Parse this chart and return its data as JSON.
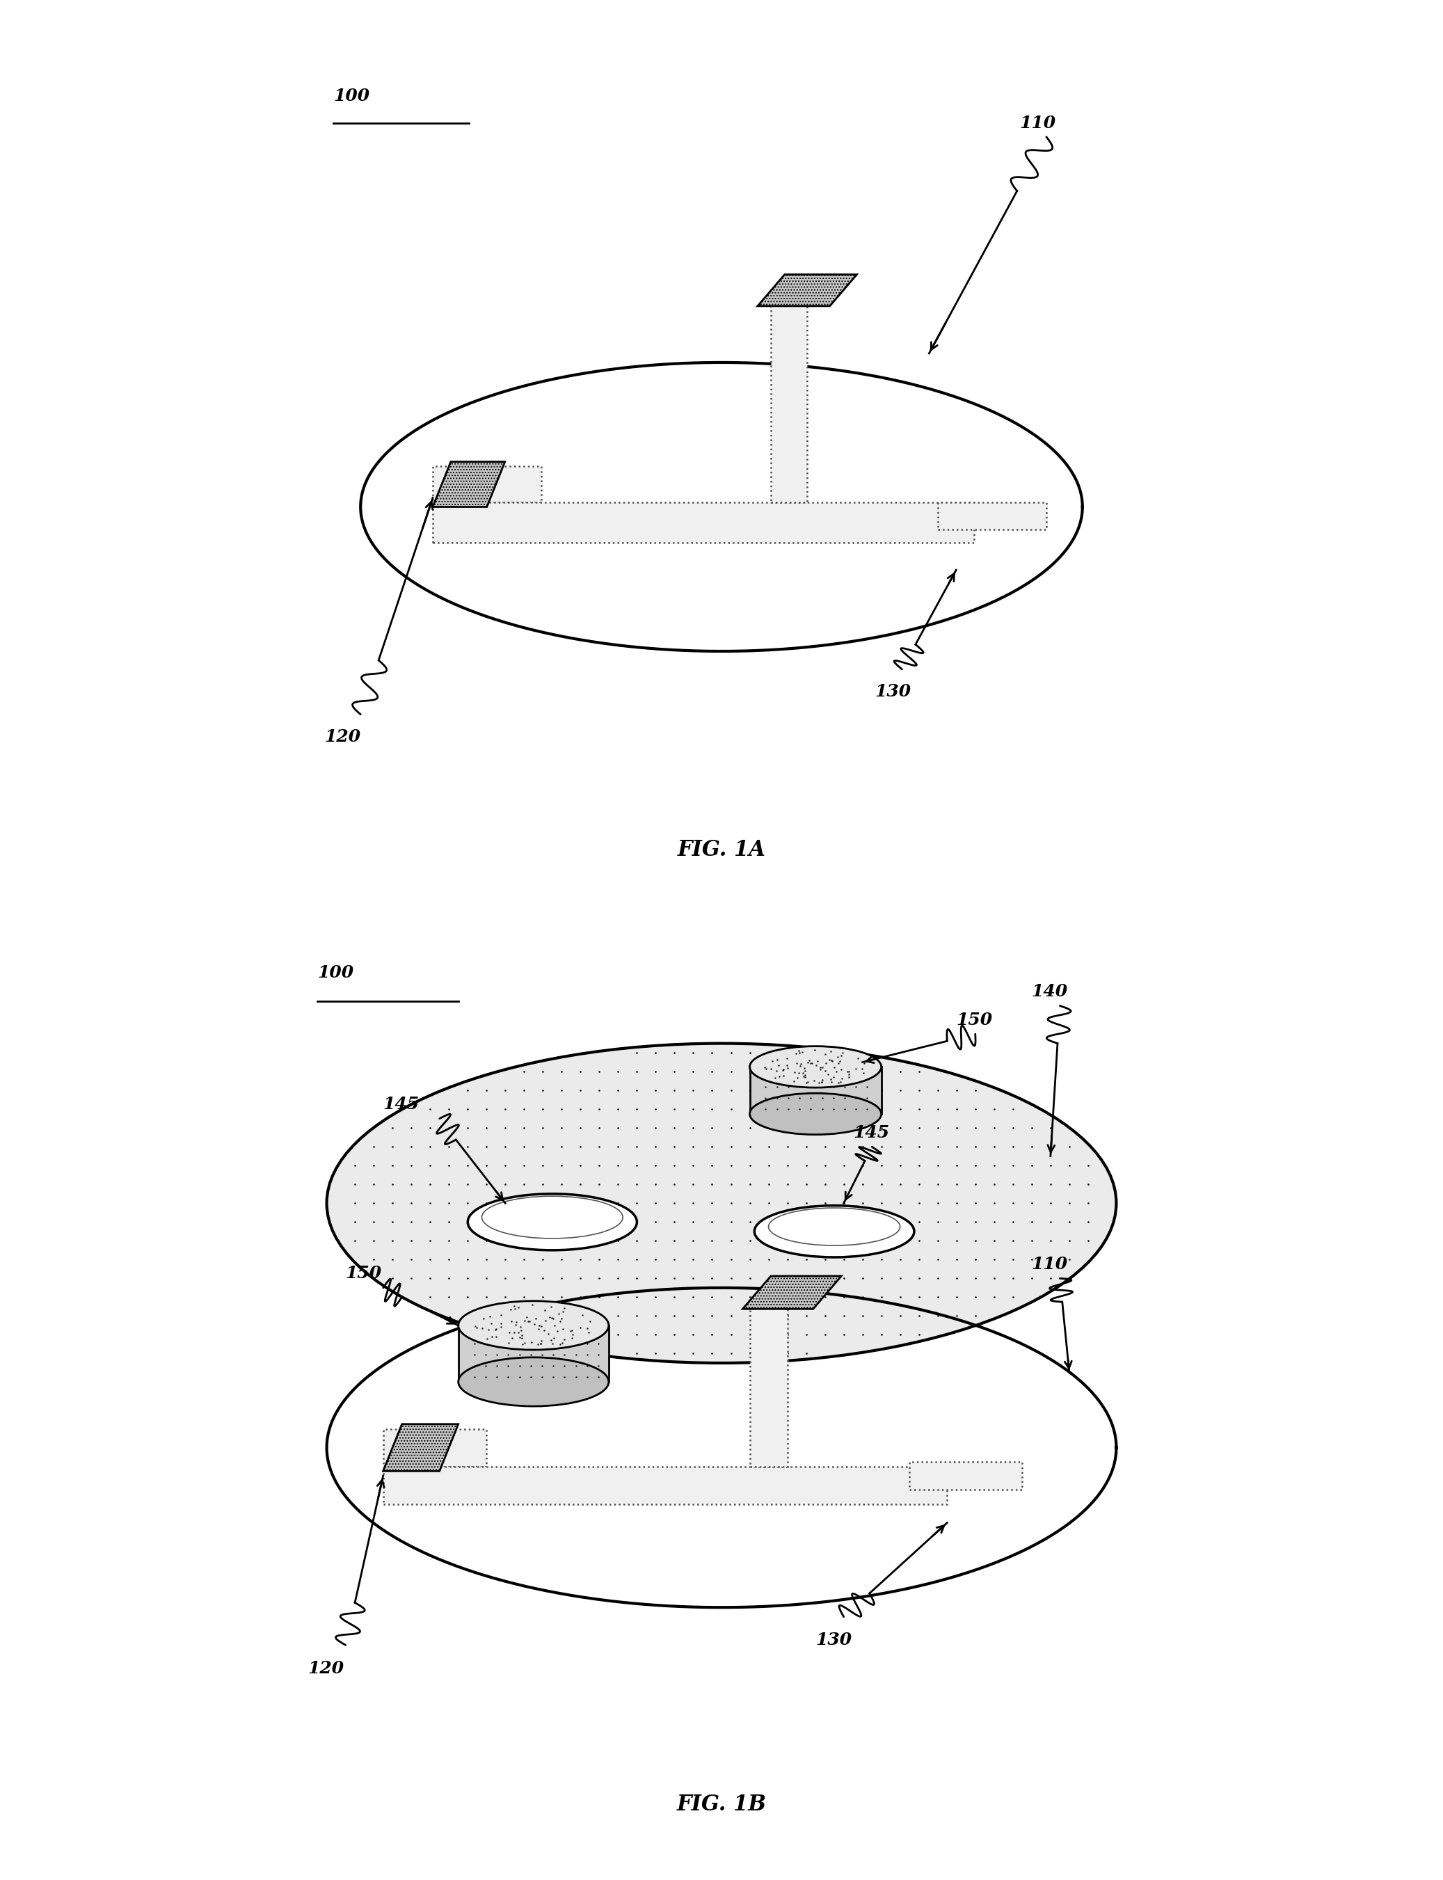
{
  "fig_width": 20.74,
  "fig_height": 27.02,
  "bg_color": "#ffffff",
  "labels": {
    "100_1": "100",
    "110_1": "110",
    "120_1": "120",
    "130_1": "130",
    "fig1a": "FIG. 1A",
    "100_2": "100",
    "110_2": "110",
    "120_2": "120",
    "130_2": "130",
    "140_2": "140",
    "145a": "145",
    "145b": "145",
    "150a": "150",
    "150b": "150",
    "fig1b": "FIG. 1B"
  }
}
